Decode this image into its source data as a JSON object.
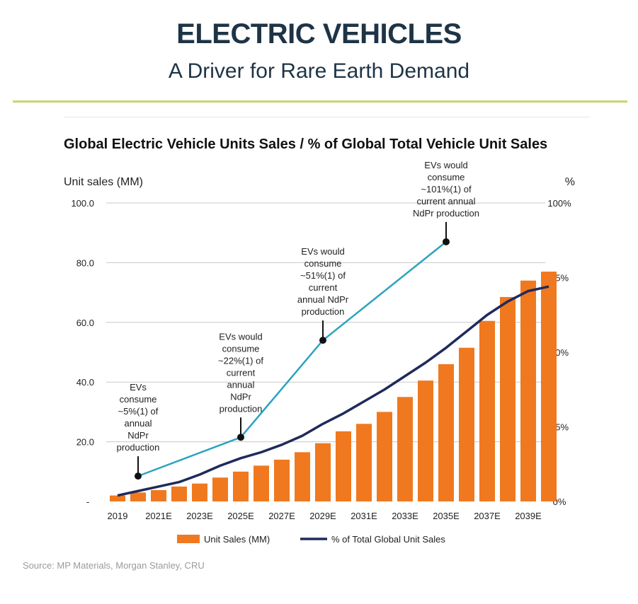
{
  "page": {
    "heading": "ELECTRIC VEHICLES",
    "subheading": "A Driver for Rare Earth Demand",
    "source": "Source: MP Materials, Morgan Stanley, CRU"
  },
  "colors": {
    "bar": "#f0791f",
    "pct_line": "#1f2a5c",
    "ndpr_line": "#2ba3c0",
    "accent_rule": "#c5d86d",
    "heading": "#1e3446"
  },
  "chart_data": {
    "type": "bar",
    "title": "Global Electric Vehicle Units Sales / % of Global Total Vehicle Unit Sales",
    "ylabel": "Unit sales (MM)",
    "y2label": "%",
    "ylim": [
      0,
      100
    ],
    "y2lim": [
      0,
      100
    ],
    "yticks": [
      "-",
      "20.0",
      "40.0",
      "60.0",
      "80.0",
      "100.0"
    ],
    "y2ticks": [
      "0%",
      "25%",
      "50%",
      "75%",
      "100%"
    ],
    "y2tick_values": [
      0,
      25,
      50,
      75,
      100
    ],
    "categories": [
      "2019",
      "2020E",
      "2021E",
      "2022E",
      "2023E",
      "2024E",
      "2025E",
      "2026E",
      "2027E",
      "2028E",
      "2029E",
      "2030E",
      "2031E",
      "2032E",
      "2033E",
      "2034E",
      "2035E",
      "2036E",
      "2037E",
      "2038E",
      "2039E",
      "2040E"
    ],
    "xtick_labels": [
      "2019",
      "",
      "2021E",
      "",
      "2023E",
      "",
      "2025E",
      "",
      "2027E",
      "",
      "2029E",
      "",
      "2031E",
      "",
      "2033E",
      "",
      "2035E",
      "",
      "2037E",
      "",
      "2039E",
      ""
    ],
    "series": [
      {
        "name": "Unit Sales (MM)",
        "type": "bar",
        "axis": "left",
        "values": [
          2.0,
          3.0,
          3.8,
          5.0,
          6.0,
          8.0,
          10.0,
          12.0,
          14.0,
          16.5,
          19.5,
          23.5,
          26.0,
          30.0,
          35.0,
          40.5,
          46.0,
          51.5,
          60.5,
          68.5,
          74.0,
          77.0
        ]
      },
      {
        "name": "% of Total Global Unit Sales",
        "type": "line",
        "axis": "right",
        "values": [
          2.0,
          3.5,
          5.0,
          6.5,
          9.0,
          12.0,
          14.5,
          16.5,
          19.0,
          22.0,
          26.0,
          29.5,
          33.5,
          37.5,
          42.0,
          46.5,
          51.5,
          57.0,
          62.5,
          67.0,
          70.5,
          72.0
        ]
      },
      {
        "name": "",
        "type": "line",
        "axis": "right",
        "x": [
          "2020E",
          "2025E",
          "2029E",
          "2035E"
        ],
        "values": [
          8.5,
          21.5,
          54.0,
          87.0
        ]
      }
    ],
    "annotations": [
      {
        "at": "2020E",
        "value": 8.5,
        "lines": [
          "EVs",
          "consume",
          "~5%(1) of",
          "annual",
          "NdPr",
          "production"
        ]
      },
      {
        "at": "2025E",
        "value": 21.5,
        "lines": [
          "EVs would",
          "consume",
          "~22%(1) of",
          "current",
          "annual",
          "NdPr",
          "production"
        ]
      },
      {
        "at": "2029E",
        "value": 54.0,
        "lines": [
          "EVs would",
          "consume",
          "~51%(1) of",
          "current",
          "annual NdPr",
          "production"
        ]
      },
      {
        "at": "2035E",
        "value": 87.0,
        "lines": [
          "EVs would",
          "consume",
          "~101%(1) of",
          "current annual",
          "NdPr production"
        ]
      }
    ],
    "legend": {
      "placement": "bottom"
    }
  }
}
